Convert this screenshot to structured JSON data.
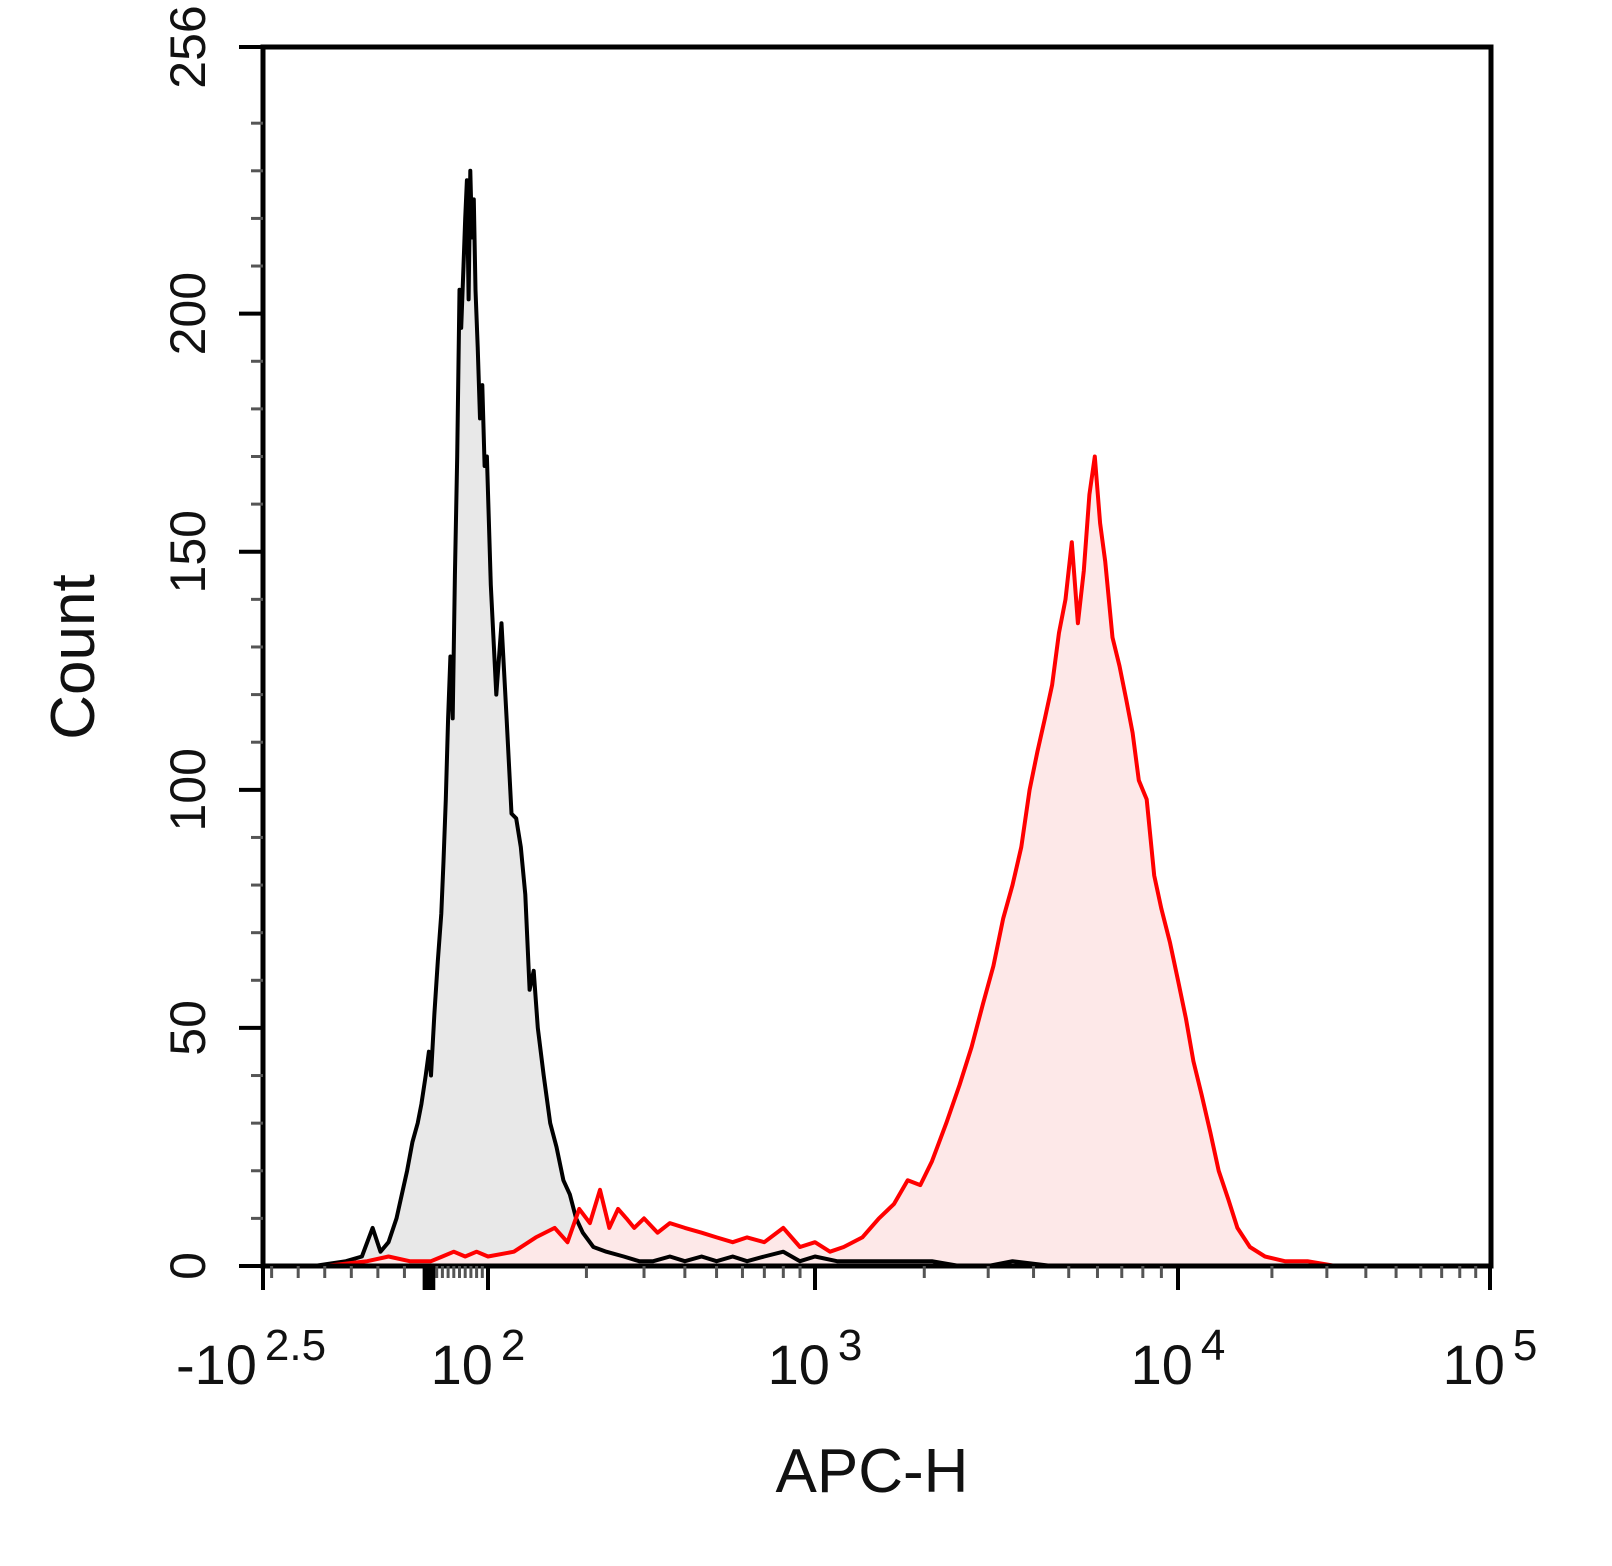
{
  "chart_data": {
    "type": "area",
    "title": "",
    "xlabel": "APC-H",
    "ylabel": "Count",
    "x_scale": "biexponential",
    "xlim": [
      -316.23,
      100000
    ],
    "ylim": [
      0,
      256
    ],
    "y_ticks": [
      0,
      50,
      100,
      150,
      200,
      256
    ],
    "x_ticks": [
      {
        "value": -316.23,
        "base": "-10",
        "exp": "2.5"
      },
      {
        "value": 100,
        "base": "10",
        "exp": "2"
      },
      {
        "value": 1000,
        "base": "10",
        "exp": "3"
      },
      {
        "value": 10000,
        "base": "10",
        "exp": "4"
      },
      {
        "value": 100000,
        "base": "10",
        "exp": "5"
      }
    ],
    "grid": false,
    "legend": "none",
    "series": [
      {
        "color": "#000000",
        "fill": "#e8e8e8",
        "points": [
          [
            -220,
            0
          ],
          [
            -160,
            1
          ],
          [
            -130,
            2
          ],
          [
            -110,
            8
          ],
          [
            -95,
            3
          ],
          [
            -80,
            5
          ],
          [
            -65,
            10
          ],
          [
            -55,
            15
          ],
          [
            -45,
            20
          ],
          [
            -35,
            26
          ],
          [
            -25,
            30
          ],
          [
            -18,
            34
          ],
          [
            -10,
            40
          ],
          [
            -4,
            45
          ],
          [
            0,
            40
          ],
          [
            6,
            53
          ],
          [
            12,
            64
          ],
          [
            18,
            74
          ],
          [
            22,
            85
          ],
          [
            26,
            98
          ],
          [
            30,
            115
          ],
          [
            34,
            128
          ],
          [
            38,
            115
          ],
          [
            42,
            145
          ],
          [
            46,
            170
          ],
          [
            50,
            205
          ],
          [
            53,
            197
          ],
          [
            57,
            210
          ],
          [
            60,
            220
          ],
          [
            63,
            228
          ],
          [
            66,
            203
          ],
          [
            69,
            230
          ],
          [
            72,
            216
          ],
          [
            75,
            224
          ],
          [
            78,
            205
          ],
          [
            82,
            193
          ],
          [
            86,
            178
          ],
          [
            90,
            185
          ],
          [
            94,
            168
          ],
          [
            98,
            170
          ],
          [
            102,
            143
          ],
          [
            106,
            120
          ],
          [
            110,
            135
          ],
          [
            114,
            115
          ],
          [
            118,
            95
          ],
          [
            122,
            94
          ],
          [
            126,
            88
          ],
          [
            130,
            78
          ],
          [
            134,
            58
          ],
          [
            138,
            62
          ],
          [
            142,
            50
          ],
          [
            148,
            40
          ],
          [
            155,
            30
          ],
          [
            162,
            25
          ],
          [
            170,
            18
          ],
          [
            178,
            15
          ],
          [
            186,
            10
          ],
          [
            195,
            7
          ],
          [
            210,
            4
          ],
          [
            230,
            3
          ],
          [
            260,
            2
          ],
          [
            290,
            1
          ],
          [
            320,
            1
          ],
          [
            360,
            2
          ],
          [
            400,
            1
          ],
          [
            450,
            2
          ],
          [
            500,
            1
          ],
          [
            560,
            2
          ],
          [
            620,
            1
          ],
          [
            700,
            2
          ],
          [
            800,
            3
          ],
          [
            900,
            1
          ],
          [
            1000,
            2
          ],
          [
            1150,
            1
          ],
          [
            1300,
            1
          ],
          [
            1500,
            1
          ],
          [
            1800,
            1
          ],
          [
            2100,
            1
          ],
          [
            2500,
            0
          ],
          [
            3000,
            0
          ],
          [
            3500,
            1
          ],
          [
            4500,
            0
          ],
          [
            6000,
            0
          ],
          [
            9000,
            0
          ]
        ]
      },
      {
        "color": "#ff0000",
        "fill": "#fde8e8",
        "points": [
          [
            -300,
            0
          ],
          [
            -200,
            0
          ],
          [
            -120,
            1
          ],
          [
            -80,
            2
          ],
          [
            -40,
            1
          ],
          [
            0,
            1
          ],
          [
            20,
            2
          ],
          [
            40,
            3
          ],
          [
            60,
            2
          ],
          [
            80,
            3
          ],
          [
            100,
            2
          ],
          [
            120,
            3
          ],
          [
            140,
            6
          ],
          [
            160,
            8
          ],
          [
            175,
            5
          ],
          [
            190,
            12
          ],
          [
            205,
            9
          ],
          [
            220,
            16
          ],
          [
            235,
            8
          ],
          [
            250,
            12
          ],
          [
            265,
            10
          ],
          [
            280,
            8
          ],
          [
            300,
            10
          ],
          [
            330,
            7
          ],
          [
            360,
            9
          ],
          [
            400,
            8
          ],
          [
            450,
            7
          ],
          [
            500,
            6
          ],
          [
            560,
            5
          ],
          [
            620,
            6
          ],
          [
            700,
            5
          ],
          [
            800,
            8
          ],
          [
            900,
            4
          ],
          [
            1000,
            5
          ],
          [
            1100,
            3
          ],
          [
            1200,
            4
          ],
          [
            1350,
            6
          ],
          [
            1500,
            10
          ],
          [
            1650,
            13
          ],
          [
            1800,
            18
          ],
          [
            1950,
            17
          ],
          [
            2100,
            22
          ],
          [
            2300,
            30
          ],
          [
            2500,
            38
          ],
          [
            2700,
            46
          ],
          [
            2900,
            55
          ],
          [
            3100,
            63
          ],
          [
            3300,
            73
          ],
          [
            3500,
            80
          ],
          [
            3700,
            88
          ],
          [
            3900,
            100
          ],
          [
            4100,
            108
          ],
          [
            4300,
            115
          ],
          [
            4500,
            122
          ],
          [
            4700,
            133
          ],
          [
            4900,
            140
          ],
          [
            5100,
            152
          ],
          [
            5300,
            135
          ],
          [
            5500,
            146
          ],
          [
            5700,
            162
          ],
          [
            5900,
            170
          ],
          [
            6100,
            156
          ],
          [
            6300,
            148
          ],
          [
            6600,
            132
          ],
          [
            6900,
            126
          ],
          [
            7200,
            119
          ],
          [
            7500,
            112
          ],
          [
            7800,
            102
          ],
          [
            8200,
            98
          ],
          [
            8600,
            82
          ],
          [
            9000,
            75
          ],
          [
            9500,
            68
          ],
          [
            10000,
            60
          ],
          [
            10600,
            52
          ],
          [
            11200,
            43
          ],
          [
            11900,
            36
          ],
          [
            12700,
            28
          ],
          [
            13500,
            20
          ],
          [
            14500,
            14
          ],
          [
            15500,
            8
          ],
          [
            17000,
            4
          ],
          [
            19000,
            2
          ],
          [
            22000,
            1
          ],
          [
            26000,
            1
          ],
          [
            32000,
            0
          ],
          [
            50000,
            0
          ],
          [
            75000,
            0
          ]
        ]
      }
    ]
  }
}
